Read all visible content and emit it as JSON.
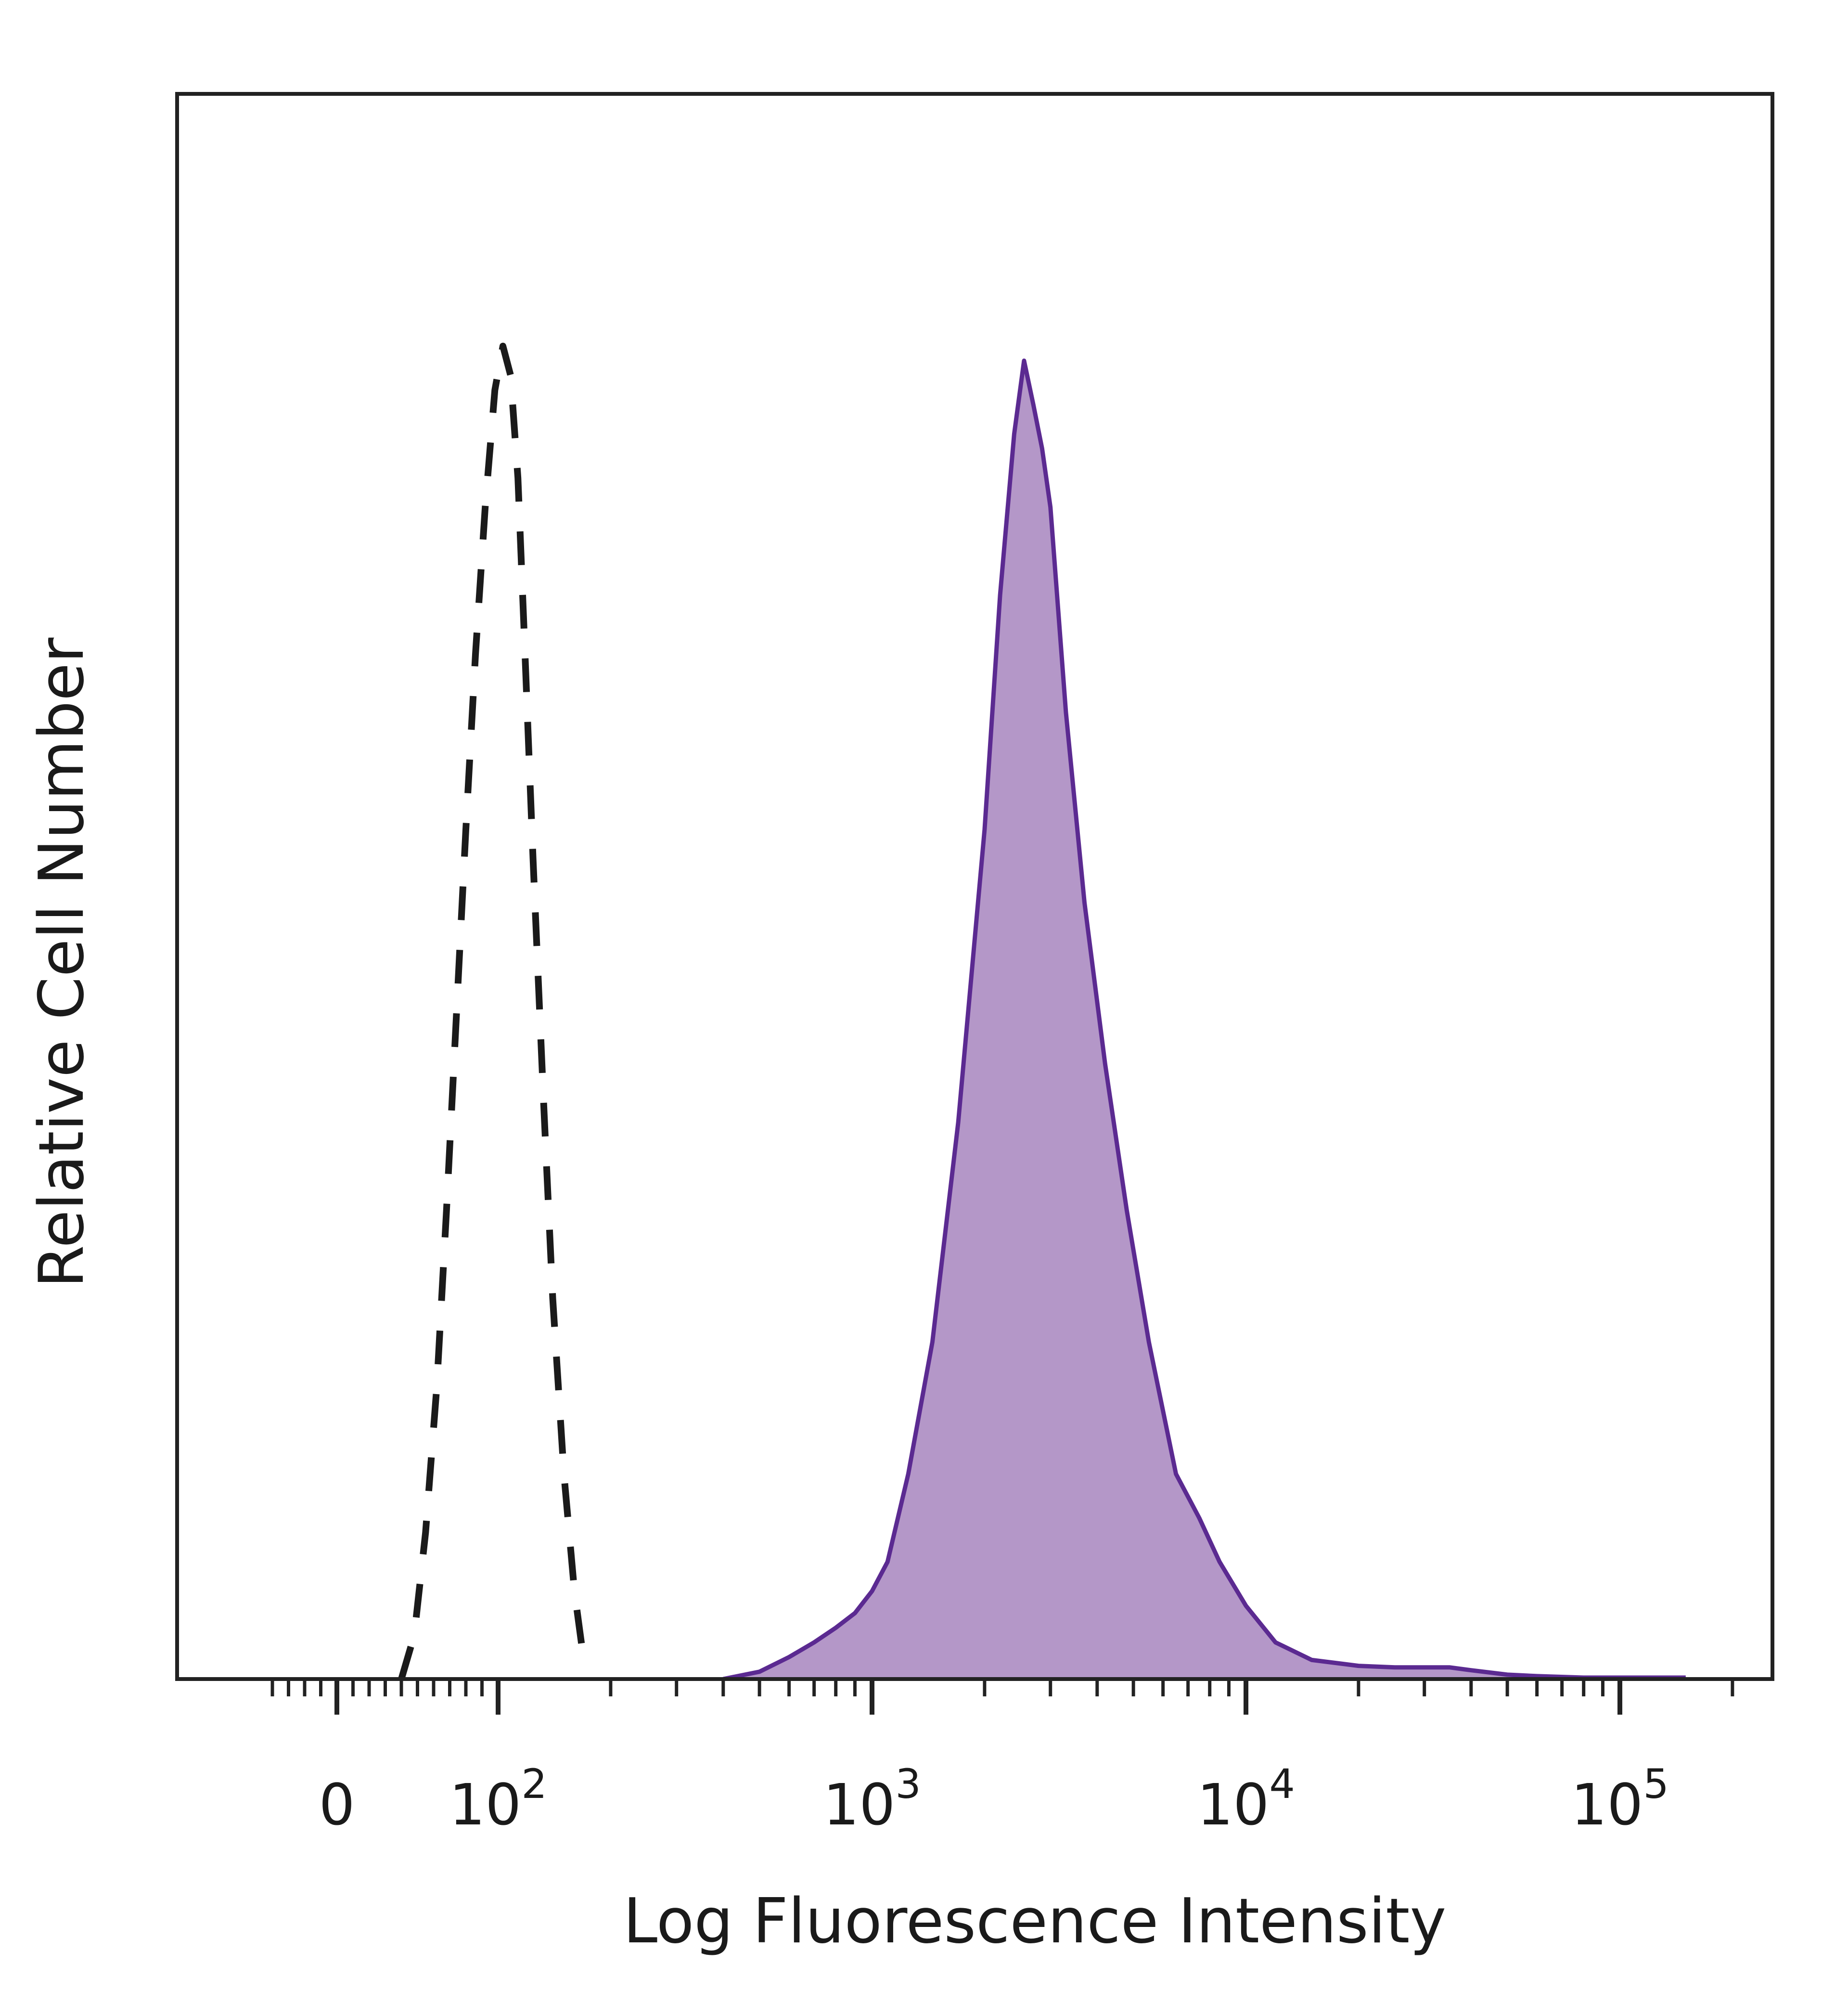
{
  "chart_data": {
    "type": "area",
    "xlabel": "Log Fluorescence Intensity",
    "ylabel": "Relative Cell Number",
    "xscale": "biexponential (log above ~100)",
    "xlim": [
      -40,
      200000
    ],
    "ylim": [
      0,
      100
    ],
    "x_ticks": [
      {
        "value": 0,
        "base": "0",
        "exp": ""
      },
      {
        "value": 100,
        "base": "10",
        "exp": "2"
      },
      {
        "value": 1000,
        "base": "10",
        "exp": "3"
      },
      {
        "value": 10000,
        "base": "10",
        "exp": "4"
      },
      {
        "value": 100000,
        "base": "10",
        "exp": "5"
      }
    ],
    "grid": false,
    "legend": "none",
    "series": [
      {
        "style": "dashed",
        "fill": false,
        "color": "#1a1a1a",
        "x": [
          40,
          48,
          55,
          62,
          68,
          74,
          80,
          86,
          92,
          98,
          103,
          108,
          113,
          118,
          124,
          132,
          140,
          150,
          160,
          170
        ],
        "y": [
          0,
          3,
          10,
          20,
          32,
          45,
          58,
          70,
          80,
          88,
          91,
          89,
          82,
          70,
          56,
          40,
          26,
          14,
          6,
          1
        ]
      },
      {
        "style": "solid",
        "fill": true,
        "color": "#5b2a91",
        "fill_color": "#b497c8",
        "x": [
          400,
          500,
          600,
          700,
          800,
          900,
          1000,
          1100,
          1250,
          1450,
          1700,
          2000,
          2200,
          2400,
          2550,
          2700,
          2850,
          3000,
          3300,
          3700,
          4200,
          4800,
          5500,
          6500,
          7500,
          8500,
          10000,
          12000,
          15000,
          20000,
          25000,
          30000,
          35000,
          40000,
          50000,
          60000,
          80000,
          100000,
          150000
        ],
        "y": [
          0,
          0.5,
          1.5,
          2.5,
          3.5,
          4.5,
          6,
          8,
          14,
          23,
          38,
          58,
          74,
          85,
          90,
          87,
          84,
          80,
          66,
          53,
          42,
          32,
          23,
          14,
          11,
          8,
          5,
          2.5,
          1.3,
          0.9,
          0.8,
          0.8,
          0.8,
          0.6,
          0.3,
          0.2,
          0.1,
          0.1,
          0.1
        ]
      }
    ]
  }
}
